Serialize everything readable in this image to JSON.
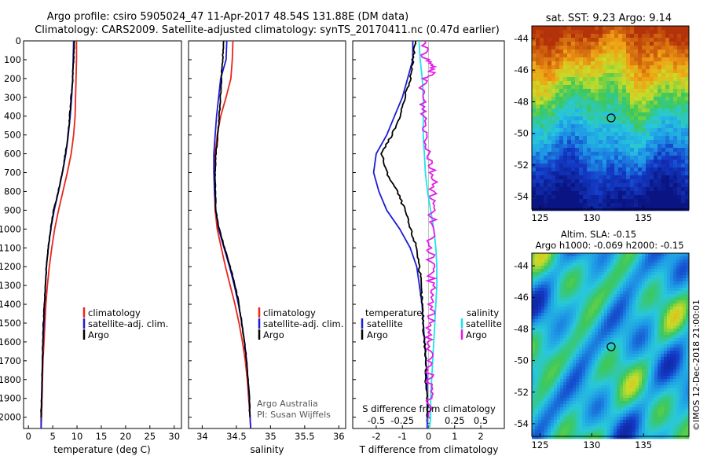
{
  "title": {
    "line1": "Argo profile: csiro 5905024_47 11-Apr-2017 48.54S 131.88E (DM data)",
    "line2": "Climatology: CARS2009. Satellite-adjusted climatology: synTS_20170411.nc (0.47d earlier)"
  },
  "colors": {
    "climatology": "#e8261c",
    "satellite": "#1c1cd6",
    "argo": "#000000",
    "sat_salinity": "#1ce4e8",
    "clim_salinity": "#e41ce8"
  },
  "depth_ticks": [
    "0",
    "100",
    "200",
    "300",
    "400",
    "500",
    "600",
    "700",
    "800",
    "900",
    "1000",
    "1100",
    "1200",
    "1300",
    "1400",
    "1500",
    "1600",
    "1700",
    "1800",
    "1900",
    "2000"
  ],
  "panels": {
    "temperature": {
      "xlabel": "temperature (deg C)",
      "xticks": [
        "0",
        "5",
        "10",
        "15",
        "20",
        "25",
        "30"
      ],
      "legend": [
        "climatology",
        "satellite-adj. clim.",
        "Argo"
      ]
    },
    "salinity": {
      "xlabel": "salinity",
      "xticks": [
        "34",
        "34.5",
        "35",
        "35.5",
        "36"
      ],
      "legend": [
        "climatology",
        "satellite-adj. clim.",
        "Argo"
      ],
      "credit1": "Argo Australia",
      "credit2": "PI: Susan Wijffels"
    },
    "difference": {
      "xlabel": "T difference from climatology",
      "xticks": [
        "-2",
        "-1",
        "0",
        "1",
        "2"
      ],
      "top_label": "S difference from climatology",
      "top_ticks": [
        "-0.5",
        "-0.25",
        "0",
        "0.25",
        "0.5"
      ],
      "legend_t_title": "temperature",
      "legend_s_title": "salinity",
      "legend_t": [
        "satellite",
        "Argo"
      ],
      "legend_s": [
        "satellite",
        "Argo"
      ]
    }
  },
  "maps": {
    "sst": {
      "title": "sat. SST: 9.23 Argo: 9.14",
      "yticks": [
        "-44",
        "-46",
        "-48",
        "-50",
        "-52",
        "-54"
      ],
      "xticks": [
        "125",
        "130",
        "135"
      ]
    },
    "sla": {
      "title1": "Altim. SLA: -0.15",
      "title2": "Argo h1000: -0.069 h2000: -0.15",
      "yticks": [
        "-44",
        "-46",
        "-48",
        "-50",
        "-52",
        "-54"
      ],
      "xticks": [
        "125",
        "130",
        "135"
      ]
    },
    "credit": "©IMOS 12-Dec-2018 21:00:01"
  },
  "chart_data": [
    {
      "type": "line",
      "title": "",
      "xlabel": "temperature (deg C)",
      "ylabel": "",
      "xlim": [
        -1,
        31.5
      ],
      "ylim": [
        2060,
        0
      ],
      "series": [
        {
          "name": "climatology",
          "points": [
            [
              9.9,
              0
            ],
            [
              9.9,
              100
            ],
            [
              9.8,
              200
            ],
            [
              9.7,
              300
            ],
            [
              9.6,
              400
            ],
            [
              9.3,
              500
            ],
            [
              8.8,
              600
            ],
            [
              8.0,
              700
            ],
            [
              7.1,
              800
            ],
            [
              6.2,
              900
            ],
            [
              5.4,
              1000
            ],
            [
              4.8,
              1100
            ],
            [
              4.3,
              1200
            ],
            [
              3.9,
              1300
            ],
            [
              3.6,
              1400
            ],
            [
              3.4,
              1500
            ],
            [
              3.2,
              1600
            ],
            [
              3.0,
              1700
            ],
            [
              2.9,
              1800
            ],
            [
              2.8,
              1900
            ],
            [
              2.7,
              2000
            ],
            [
              2.6,
              2060
            ]
          ]
        },
        {
          "name": "satellite-adj. clim.",
          "points": [
            [
              9.3,
              0
            ],
            [
              9.2,
              100
            ],
            [
              9.1,
              200
            ],
            [
              8.9,
              300
            ],
            [
              8.6,
              400
            ],
            [
              8.2,
              500
            ],
            [
              7.7,
              600
            ],
            [
              7.0,
              700
            ],
            [
              6.2,
              800
            ],
            [
              5.3,
              900
            ],
            [
              4.6,
              1000
            ],
            [
              4.1,
              1100
            ],
            [
              3.7,
              1200
            ],
            [
              3.5,
              1300
            ],
            [
              3.3,
              1400
            ],
            [
              3.2,
              1500
            ],
            [
              3.0,
              1600
            ],
            [
              2.9,
              1700
            ],
            [
              2.8,
              1800
            ],
            [
              2.7,
              1900
            ],
            [
              2.6,
              2000
            ],
            [
              2.6,
              2060
            ]
          ]
        },
        {
          "name": "Argo",
          "points": [
            [
              9.4,
              0
            ],
            [
              9.3,
              100
            ],
            [
              9.1,
              200
            ],
            [
              8.8,
              300
            ],
            [
              8.5,
              400
            ],
            [
              8.2,
              500
            ],
            [
              7.6,
              600
            ],
            [
              7.0,
              700
            ],
            [
              6.1,
              800
            ],
            [
              5.2,
              900
            ],
            [
              4.6,
              1000
            ],
            [
              4.1,
              1100
            ],
            [
              3.7,
              1200
            ],
            [
              3.5,
              1300
            ],
            [
              3.3,
              1400
            ],
            [
              3.1,
              1500
            ],
            [
              3.0,
              1600
            ],
            [
              2.9,
              1700
            ],
            [
              2.8,
              1800
            ],
            [
              2.7,
              1900
            ],
            [
              2.6,
              2000
            ]
          ]
        }
      ]
    },
    {
      "type": "line",
      "title": "",
      "xlabel": "salinity",
      "ylabel": "",
      "xlim": [
        33.8,
        36.1
      ],
      "ylim": [
        2060,
        0
      ],
      "series": [
        {
          "name": "climatology",
          "points": [
            [
              34.45,
              0
            ],
            [
              34.44,
              100
            ],
            [
              34.42,
              200
            ],
            [
              34.35,
              300
            ],
            [
              34.27,
              400
            ],
            [
              34.22,
              500
            ],
            [
              34.19,
              600
            ],
            [
              34.18,
              700
            ],
            [
              34.18,
              800
            ],
            [
              34.19,
              900
            ],
            [
              34.22,
              1000
            ],
            [
              34.28,
              1100
            ],
            [
              34.34,
              1200
            ],
            [
              34.41,
              1300
            ],
            [
              34.48,
              1400
            ],
            [
              34.54,
              1500
            ],
            [
              34.59,
              1600
            ],
            [
              34.63,
              1700
            ],
            [
              34.66,
              1800
            ],
            [
              34.68,
              1900
            ],
            [
              34.7,
              2000
            ],
            [
              34.71,
              2060
            ]
          ]
        },
        {
          "name": "satellite-adj. clim.",
          "points": [
            [
              34.36,
              0
            ],
            [
              34.35,
              100
            ],
            [
              34.27,
              200
            ],
            [
              34.24,
              300
            ],
            [
              34.21,
              400
            ],
            [
              34.19,
              500
            ],
            [
              34.17,
              600
            ],
            [
              34.17,
              700
            ],
            [
              34.18,
              800
            ],
            [
              34.2,
              900
            ],
            [
              34.24,
              1000
            ],
            [
              34.32,
              1100
            ],
            [
              34.4,
              1200
            ],
            [
              34.47,
              1300
            ],
            [
              34.53,
              1400
            ],
            [
              34.58,
              1500
            ],
            [
              34.62,
              1600
            ],
            [
              34.65,
              1700
            ],
            [
              34.67,
              1800
            ],
            [
              34.69,
              1900
            ],
            [
              34.7,
              2000
            ],
            [
              34.71,
              2060
            ]
          ]
        },
        {
          "name": "Argo",
          "points": [
            [
              34.31,
              0
            ],
            [
              34.3,
              100
            ],
            [
              34.28,
              200
            ],
            [
              34.27,
              300
            ],
            [
              34.25,
              400
            ],
            [
              34.23,
              500
            ],
            [
              34.2,
              600
            ],
            [
              34.19,
              700
            ],
            [
              34.19,
              800
            ],
            [
              34.2,
              900
            ],
            [
              34.25,
              1000
            ],
            [
              34.33,
              1100
            ],
            [
              34.41,
              1200
            ],
            [
              34.48,
              1300
            ],
            [
              34.54,
              1400
            ],
            [
              34.58,
              1500
            ],
            [
              34.62,
              1600
            ],
            [
              34.65,
              1700
            ],
            [
              34.67,
              1800
            ],
            [
              34.69,
              1900
            ],
            [
              34.7,
              2000
            ]
          ]
        }
      ]
    },
    {
      "type": "line",
      "title": "",
      "xlabel": "T difference from climatology",
      "ylabel": "",
      "xlim": [
        -2.9,
        2.9
      ],
      "ylim": [
        2060,
        0
      ],
      "top_axis": {
        "label": "S difference from climatology",
        "xlim": [
          -0.725,
          0.725
        ]
      },
      "series": [
        {
          "name": "temperature satellite",
          "axis": "T",
          "points": [
            [
              -0.6,
              0
            ],
            [
              -0.6,
              100
            ],
            [
              -0.8,
              200
            ],
            [
              -1.0,
              300
            ],
            [
              -1.3,
              400
            ],
            [
              -1.6,
              500
            ],
            [
              -2.0,
              600
            ],
            [
              -2.1,
              700
            ],
            [
              -1.9,
              800
            ],
            [
              -1.6,
              900
            ],
            [
              -1.1,
              1000
            ],
            [
              -0.7,
              1100
            ],
            [
              -0.45,
              1200
            ],
            [
              -0.35,
              1300
            ],
            [
              -0.25,
              1400
            ],
            [
              -0.2,
              1500
            ],
            [
              -0.15,
              1600
            ],
            [
              -0.1,
              1700
            ],
            [
              -0.05,
              1800
            ],
            [
              -0.05,
              1900
            ],
            [
              -0.05,
              2000
            ],
            [
              -0.05,
              2060
            ]
          ]
        },
        {
          "name": "temperature Argo",
          "axis": "T",
          "points": [
            [
              -0.5,
              0
            ],
            [
              -0.6,
              100
            ],
            [
              -0.7,
              200
            ],
            [
              -0.9,
              300
            ],
            [
              -1.1,
              400
            ],
            [
              -1.4,
              500
            ],
            [
              -1.8,
              600
            ],
            [
              -1.6,
              700
            ],
            [
              -1.2,
              800
            ],
            [
              -0.9,
              900
            ],
            [
              -0.7,
              1000
            ],
            [
              -0.45,
              1100
            ],
            [
              -0.35,
              1200
            ],
            [
              -0.3,
              1300
            ],
            [
              -0.25,
              1400
            ],
            [
              -0.2,
              1500
            ],
            [
              -0.15,
              1600
            ],
            [
              -0.1,
              1700
            ],
            [
              -0.1,
              1800
            ],
            [
              -0.05,
              1900
            ],
            [
              -0.05,
              2000
            ]
          ]
        },
        {
          "name": "salinity satellite",
          "axis": "S",
          "points": [
            [
              -0.09,
              0
            ],
            [
              -0.08,
              100
            ],
            [
              -0.06,
              200
            ],
            [
              -0.05,
              300
            ],
            [
              -0.05,
              400
            ],
            [
              -0.05,
              500
            ],
            [
              -0.04,
              600
            ],
            [
              -0.03,
              700
            ],
            [
              -0.01,
              800
            ],
            [
              0.02,
              900
            ],
            [
              0.05,
              1000
            ],
            [
              0.07,
              1100
            ],
            [
              0.08,
              1200
            ],
            [
              0.08,
              1300
            ],
            [
              0.07,
              1400
            ],
            [
              0.06,
              1500
            ],
            [
              0.05,
              1600
            ],
            [
              0.04,
              1700
            ],
            [
              0.03,
              1800
            ],
            [
              0.02,
              1900
            ],
            [
              0.02,
              2000
            ],
            [
              0.01,
              2060
            ]
          ]
        },
        {
          "name": "salinity Argo",
          "axis": "S",
          "points": [
            [
              -0.03,
              0
            ],
            [
              -0.03,
              100
            ],
            [
              0.06,
              150
            ],
            [
              -0.04,
              200
            ],
            [
              -0.06,
              300
            ],
            [
              -0.04,
              400
            ],
            [
              -0.02,
              500
            ],
            [
              0.01,
              600
            ],
            [
              0.04,
              700
            ],
            [
              0.05,
              800
            ],
            [
              0.04,
              900
            ],
            [
              0.03,
              1000
            ],
            [
              0.02,
              1100
            ],
            [
              0.02,
              1200
            ],
            [
              0.03,
              1300
            ],
            [
              0.03,
              1400
            ],
            [
              0.02,
              1500
            ],
            [
              0.01,
              1600
            ],
            [
              0.01,
              1700
            ],
            [
              0.01,
              1800
            ],
            [
              0.01,
              1900
            ],
            [
              0.0,
              2000
            ]
          ]
        }
      ]
    }
  ]
}
